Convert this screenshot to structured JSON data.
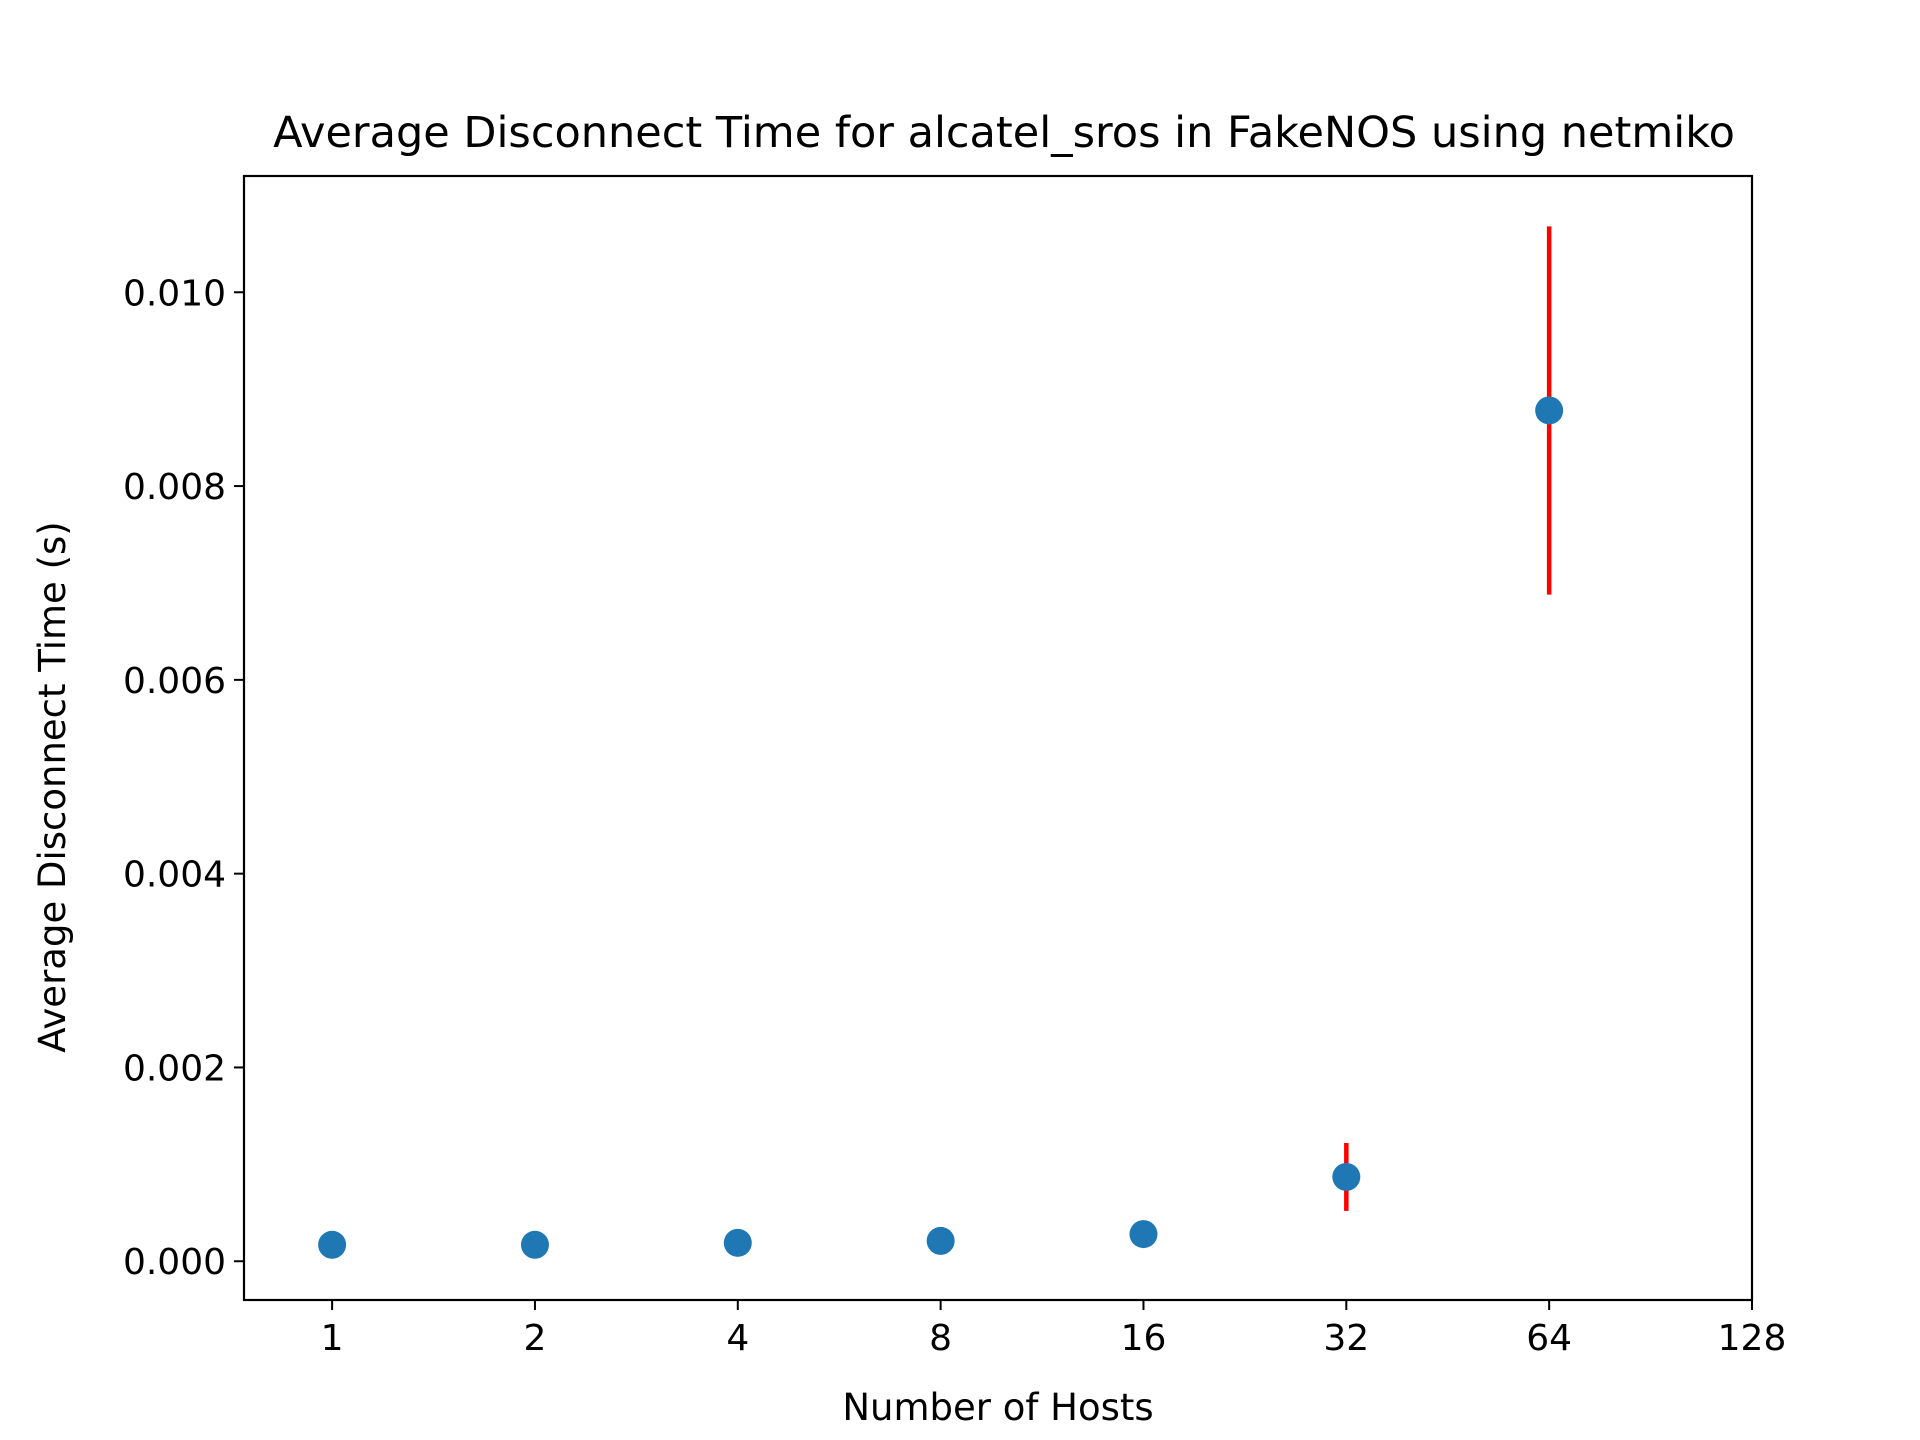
{
  "chart_data": {
    "type": "scatter",
    "title": "Average Disconnect Time for alcatel_sros in FakeNOS using netmiko",
    "xlabel": "Number of Hosts",
    "ylabel": "Average Disconnect Time (s)",
    "x_scale": "log2",
    "x_ticks": [
      1,
      2,
      4,
      8,
      16,
      32,
      64,
      128
    ],
    "y_ticks": [
      0.0,
      0.002,
      0.004,
      0.006,
      0.008,
      0.01
    ],
    "y_tick_labels": [
      "0.000",
      "0.002",
      "0.004",
      "0.006",
      "0.008",
      "0.010"
    ],
    "x_tick_labels": [
      "1",
      "2",
      "4",
      "8",
      "16",
      "32",
      "64",
      "128"
    ],
    "xlim": [
      0.74,
      128
    ],
    "ylim": [
      -0.0004,
      0.0112
    ],
    "grid": false,
    "legend": "none",
    "series": [
      {
        "x": [
          1,
          2,
          4,
          8,
          16,
          32,
          64
        ],
        "y": [
          0.00017,
          0.00017,
          0.00019,
          0.00021,
          0.00028,
          0.00087,
          0.00878
        ],
        "yerr": [
          1e-05,
          1e-05,
          1e-05,
          2e-05,
          3e-05,
          0.00035,
          0.0019
        ],
        "color": "#1f77b4",
        "error_color": "#ff0000"
      }
    ]
  }
}
